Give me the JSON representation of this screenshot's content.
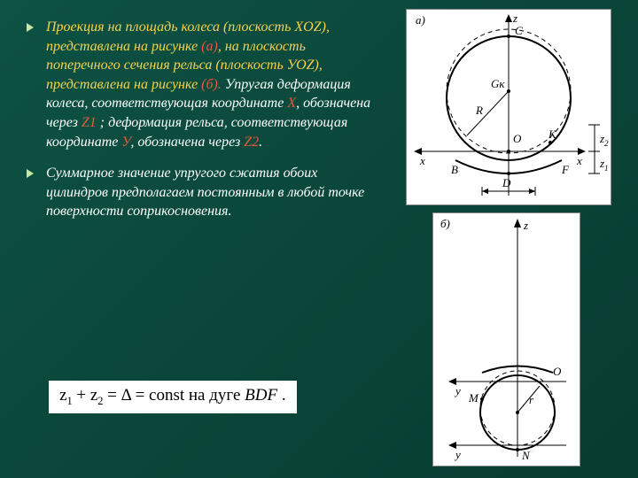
{
  "bullets": [
    {
      "segments": [
        {
          "t": "Проекция на площадь колеса (плоскость XOZ), представлена на рисунке ",
          "c": "yellow"
        },
        {
          "t": "(а)",
          "c": "red"
        },
        {
          "t": ", на плоскость поперечного сечения рельса (плоскость УОZ), представлена на рисунке ",
          "c": "yellow"
        },
        {
          "t": "(б).",
          "c": "red"
        },
        {
          "t": " Упругая деформация колеса, соответствующая координате ",
          "c": ""
        },
        {
          "t": "X",
          "c": "red"
        },
        {
          "t": ", обозначена через ",
          "c": ""
        },
        {
          "t": "Z1",
          "c": "red"
        },
        {
          "t": " ; деформация рельса, соответствующая координате ",
          "c": ""
        },
        {
          "t": "У",
          "c": "red"
        },
        {
          "t": ", обозначена через ",
          "c": ""
        },
        {
          "t": "Z2",
          "c": "red"
        },
        {
          "t": ".",
          "c": ""
        }
      ]
    },
    {
      "segments": [
        {
          "t": "Суммарное значение упругого сжатия обоих цилиндров предполагаем постоянным в любой точке поверхности соприкосновения.",
          "c": ""
        }
      ]
    }
  ],
  "formula": {
    "z1": "z",
    "s1": "1",
    "plus": " + ",
    "z2": "z",
    "s2": "2",
    "eq": " = Δ = const  на  дуге  ",
    "arc": "BDF",
    "dot": " ."
  },
  "figA": {
    "label": "а)",
    "axis_z": "z",
    "axis_x": "x",
    "C": "C",
    "Gk": "Gк",
    "R": "R",
    "O": "O",
    "K": "K",
    "B": "B",
    "D": "D",
    "F": "F",
    "x2": "x",
    "z1": "z",
    "z1sub": "1",
    "z2": "z",
    "z2sub": "2"
  },
  "figB": {
    "label": "б)",
    "axis_z": "z",
    "axis_y": "y",
    "O": "O",
    "M": "M",
    "N": "N",
    "r": "r",
    "y2": "y"
  }
}
